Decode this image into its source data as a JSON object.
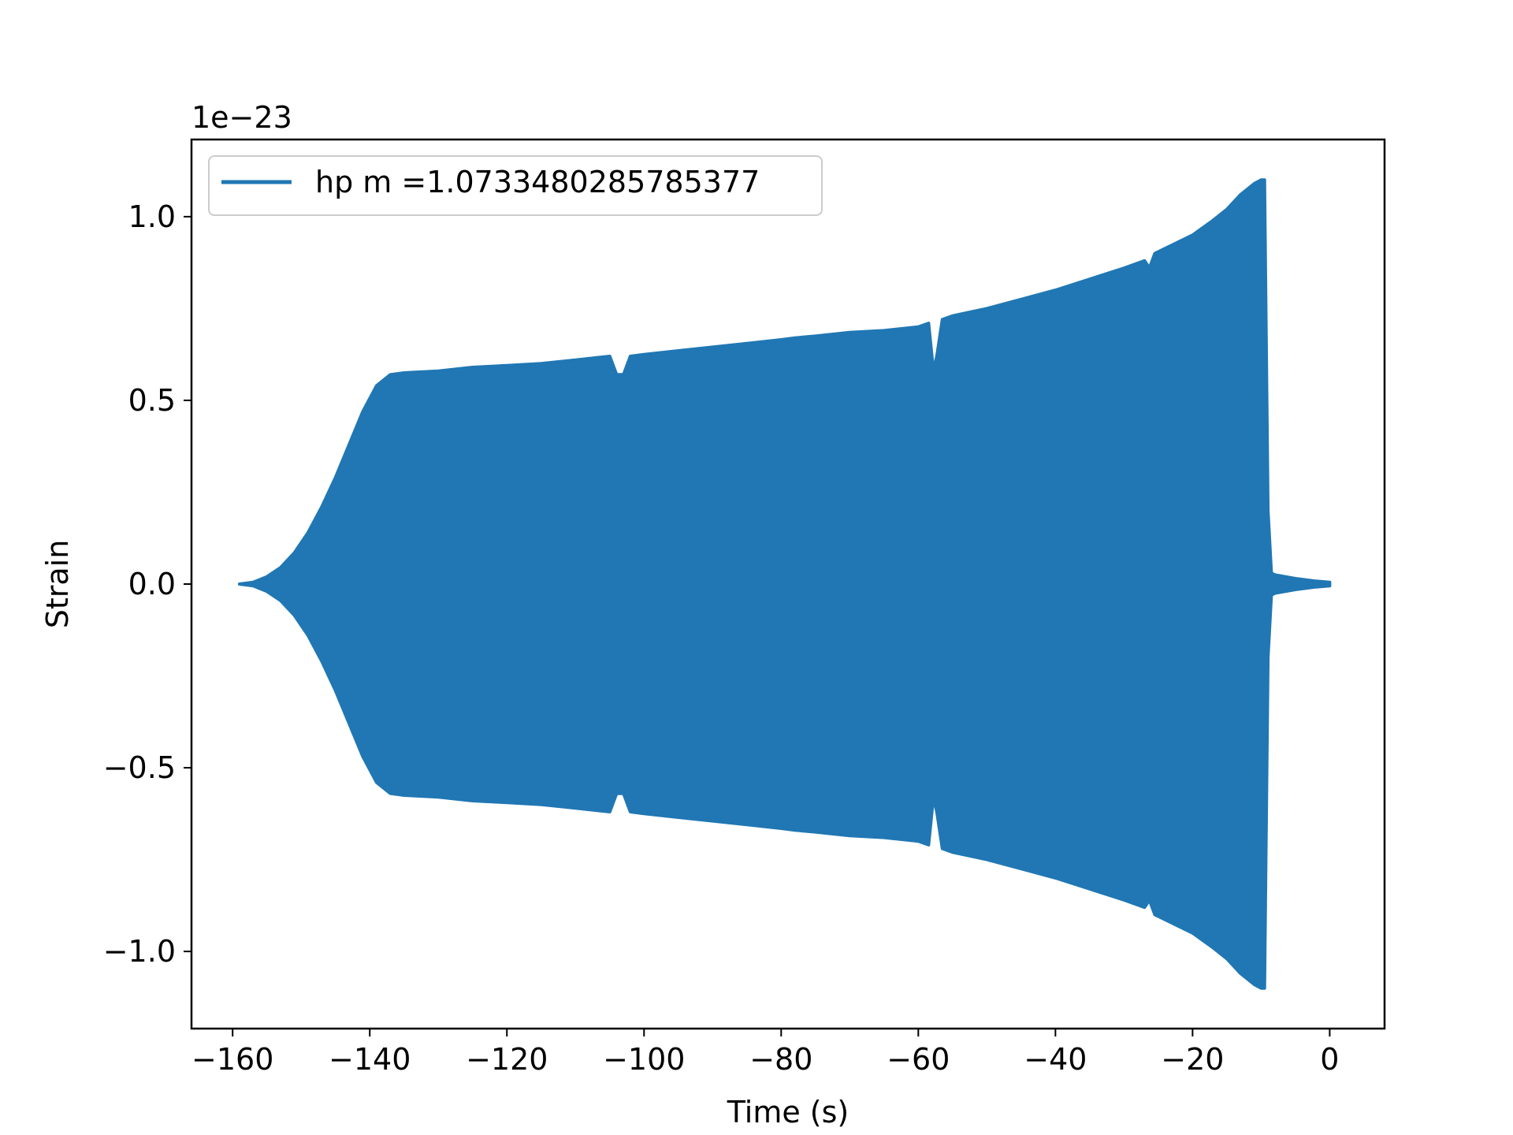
{
  "chart_data": {
    "type": "line",
    "title": "",
    "xlabel": "Time (s)",
    "ylabel": "Strain",
    "y_offset_label": "1e−23",
    "y_scale_exponent": -23,
    "xlim": [
      -166.0,
      8.0
    ],
    "ylim": [
      -1.21,
      1.21
    ],
    "x_ticks": [
      -160,
      -140,
      -120,
      -100,
      -80,
      -60,
      -40,
      -20,
      0
    ],
    "x_tick_labels": [
      "−160",
      "−140",
      "−120",
      "−100",
      "−80",
      "−60",
      "−40",
      "−20",
      "0"
    ],
    "y_ticks": [
      -1.0,
      -0.5,
      0.0,
      0.5,
      1.0
    ],
    "y_tick_labels": [
      "−1.0",
      "−0.5",
      "0.0",
      "0.5",
      "1.0"
    ],
    "grid": false,
    "legend_position": "top-left",
    "series": [
      {
        "name": "hp m =1.0733480285785377",
        "color": "#2077b4",
        "envelope_note": "rapid oscillation filling the band between -amplitude and +amplitude",
        "x": [
          -159,
          -157,
          -155,
          -153,
          -151,
          -149,
          -147,
          -145,
          -143,
          -141,
          -139,
          -137,
          -135,
          -130,
          -125,
          -120,
          -115,
          -110,
          -105,
          -104,
          -103,
          -102,
          -100,
          -95,
          -90,
          -85,
          -80,
          -78,
          -75,
          -70,
          -65,
          -60,
          -58.5,
          -57.8,
          -57.3,
          -56.5,
          -55,
          -50,
          -45,
          -40,
          -35,
          -30,
          -27,
          -26.3,
          -25.5,
          -20,
          -17,
          -15,
          -13,
          -11,
          -10,
          -9.5,
          -9,
          -8.5,
          -8,
          -5,
          -2,
          0
        ],
        "amplitude": [
          0.0,
          0.005,
          0.02,
          0.045,
          0.085,
          0.14,
          0.21,
          0.29,
          0.38,
          0.47,
          0.54,
          0.57,
          0.575,
          0.58,
          0.59,
          0.595,
          0.6,
          0.61,
          0.62,
          0.57,
          0.57,
          0.62,
          0.625,
          0.635,
          0.645,
          0.655,
          0.665,
          0.67,
          0.675,
          0.685,
          0.69,
          0.7,
          0.71,
          0.58,
          0.62,
          0.72,
          0.73,
          0.75,
          0.775,
          0.8,
          0.83,
          0.86,
          0.88,
          0.86,
          0.9,
          0.95,
          0.99,
          1.02,
          1.06,
          1.09,
          1.1,
          1.1,
          0.2,
          0.03,
          0.025,
          0.015,
          0.008,
          0.005
        ]
      }
    ]
  }
}
